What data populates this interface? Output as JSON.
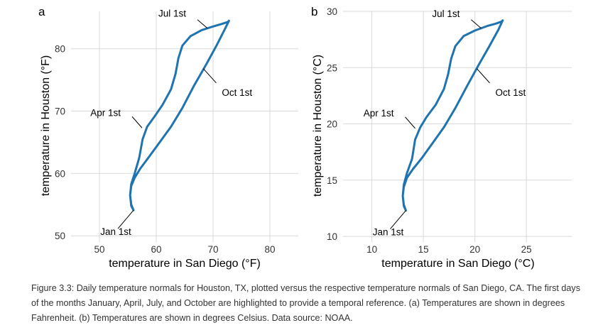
{
  "caption": "Figure 3.3: Daily temperature normals for Houston, TX, plotted versus the respective temperature normals of San Diego, CA. The first days of the months January, April, July, and October are highlighted to provide a temporal reference. (a) Temperatures are shown in degrees Fahrenheit. (b) Temperatures are shown in degrees Celsius. Data source: NOAA.",
  "chart_data": [
    {
      "panel": "a",
      "type": "line",
      "xlabel": "temperature in San Diego (°F)",
      "ylabel": "temperature in Houston (°F)",
      "xlim": [
        45,
        85
      ],
      "ylim": [
        49,
        86
      ],
      "xticks": [
        50,
        60,
        70,
        80
      ],
      "yticks": [
        50,
        60,
        70,
        80
      ],
      "grid": true,
      "series": [
        {
          "color": "#1f74b0",
          "x": [
            56.0,
            55.6,
            55.4,
            55.6,
            56.2,
            57.0,
            57.6,
            58.4,
            59.6,
            61.1,
            62.6,
            63.4,
            63.9,
            64.6,
            66.0,
            68.0,
            70.1,
            71.6,
            72.6,
            72.8,
            72.1,
            70.6,
            68.8,
            66.6,
            64.6,
            62.6,
            60.6,
            58.6,
            57.2,
            56.2,
            55.6,
            55.4,
            55.6,
            56.0
          ],
          "y": [
            54.1,
            55.0,
            56.5,
            58.3,
            60.0,
            62.5,
            65.5,
            67.5,
            69.0,
            71.0,
            73.5,
            76.0,
            78.5,
            80.5,
            82.0,
            83.0,
            83.6,
            84.0,
            84.3,
            84.5,
            83.2,
            80.5,
            77.5,
            74.0,
            70.5,
            67.5,
            65.0,
            62.5,
            60.8,
            59.3,
            58.0,
            56.5,
            54.8,
            54.1
          ]
        }
      ],
      "annotations": [
        {
          "label": "Jan 1st",
          "x": 56.0,
          "y": 54.1
        },
        {
          "label": "Apr 1st",
          "x": 57.5,
          "y": 67.3
        },
        {
          "label": "Jul 1st",
          "x": 69.0,
          "y": 83.3
        },
        {
          "label": "Oct 1st",
          "x": 68.3,
          "y": 76.8
        }
      ]
    },
    {
      "panel": "b",
      "type": "line",
      "xlabel": "temperature in San Diego (°C)",
      "ylabel": "temperature in Houston (°C)",
      "xlim": [
        7.2,
        29.4
      ],
      "ylim": [
        9.5,
        30.0
      ],
      "xticks": [
        10,
        15,
        20,
        25
      ],
      "yticks": [
        10,
        15,
        20,
        25,
        30
      ],
      "grid": true,
      "series": [
        {
          "color": "#1f74b0",
          "x": [
            13.3,
            13.1,
            13.0,
            13.1,
            13.4,
            13.9,
            14.2,
            14.7,
            15.3,
            16.2,
            17.0,
            17.4,
            17.7,
            18.1,
            18.9,
            20.0,
            21.2,
            22.0,
            22.6,
            22.7,
            22.3,
            21.4,
            20.4,
            19.2,
            18.1,
            17.0,
            15.9,
            14.8,
            14.0,
            13.4,
            13.1,
            13.0,
            13.1,
            13.3
          ],
          "y": [
            12.3,
            12.8,
            13.6,
            14.6,
            15.6,
            16.9,
            18.6,
            19.7,
            20.6,
            21.7,
            23.1,
            24.4,
            25.8,
            26.9,
            27.8,
            28.3,
            28.7,
            28.9,
            29.1,
            29.2,
            28.4,
            26.9,
            25.3,
            23.3,
            21.4,
            19.7,
            18.3,
            16.9,
            16.0,
            15.2,
            14.4,
            13.6,
            12.7,
            12.3
          ]
        }
      ],
      "annotations": [
        {
          "label": "Jan 1st",
          "x": 13.3,
          "y": 12.3
        },
        {
          "label": "Apr 1st",
          "x": 14.2,
          "y": 19.6
        },
        {
          "label": "Jul 1st",
          "x": 20.6,
          "y": 28.5
        },
        {
          "label": "Oct 1st",
          "x": 20.2,
          "y": 24.9
        }
      ]
    }
  ]
}
